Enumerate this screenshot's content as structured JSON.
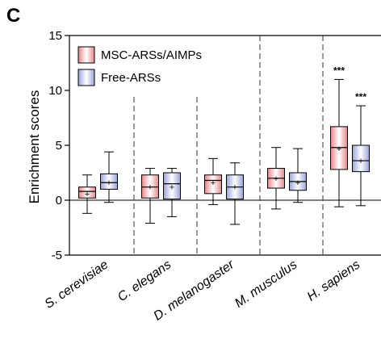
{
  "panel_label": "C",
  "chart_data": {
    "type": "box",
    "ylabel": "Enrichment scores",
    "ylim": [
      -5,
      15
    ],
    "yticks": [
      -5,
      0,
      5,
      10,
      15
    ],
    "categories": [
      "S. cerevisiae",
      "C. elegans",
      "D. melanogaster",
      "M. musculus",
      "H. sapiens"
    ],
    "series": [
      {
        "name": "MSC-ARSs/AIMPs",
        "color": "#e8868a",
        "boxes": [
          {
            "min": -1.2,
            "q1": 0.2,
            "median": 0.8,
            "mean": 0.6,
            "q3": 1.2,
            "max": 2.3
          },
          {
            "min": -2.1,
            "q1": 0.2,
            "median": 1.2,
            "mean": 1.2,
            "q3": 2.3,
            "max": 2.9
          },
          {
            "min": -0.4,
            "q1": 0.6,
            "median": 1.8,
            "mean": 1.6,
            "q3": 2.3,
            "max": 3.8
          },
          {
            "min": -0.8,
            "q1": 1.1,
            "median": 2.0,
            "mean": 2.0,
            "q3": 2.9,
            "max": 4.8
          },
          {
            "min": -0.6,
            "q1": 2.8,
            "median": 4.8,
            "mean": 4.7,
            "q3": 6.7,
            "max": 11.0
          }
        ]
      },
      {
        "name": "Free-ARSs",
        "color": "#9aa3d8",
        "boxes": [
          {
            "min": -0.2,
            "q1": 1.0,
            "median": 1.6,
            "mean": 1.6,
            "q3": 2.4,
            "max": 4.4
          },
          {
            "min": -1.5,
            "q1": 0.1,
            "median": 1.5,
            "mean": 1.2,
            "q3": 2.5,
            "max": 2.9
          },
          {
            "min": -2.2,
            "q1": 0.1,
            "median": 1.2,
            "mean": 1.2,
            "q3": 2.3,
            "max": 3.4
          },
          {
            "min": -0.2,
            "q1": 0.9,
            "median": 1.7,
            "mean": 1.6,
            "q3": 2.5,
            "max": 4.7
          },
          {
            "min": -0.5,
            "q1": 2.6,
            "median": 3.6,
            "mean": 3.6,
            "q3": 5.0,
            "max": 8.6
          }
        ]
      }
    ],
    "significance": [
      {
        "category": "H. sapiens",
        "series": "MSC-ARSs/AIMPs",
        "label": "***"
      },
      {
        "category": "H. sapiens",
        "series": "Free-ARSs",
        "label": "***"
      }
    ],
    "legend_position": "top-left",
    "grid": false
  }
}
